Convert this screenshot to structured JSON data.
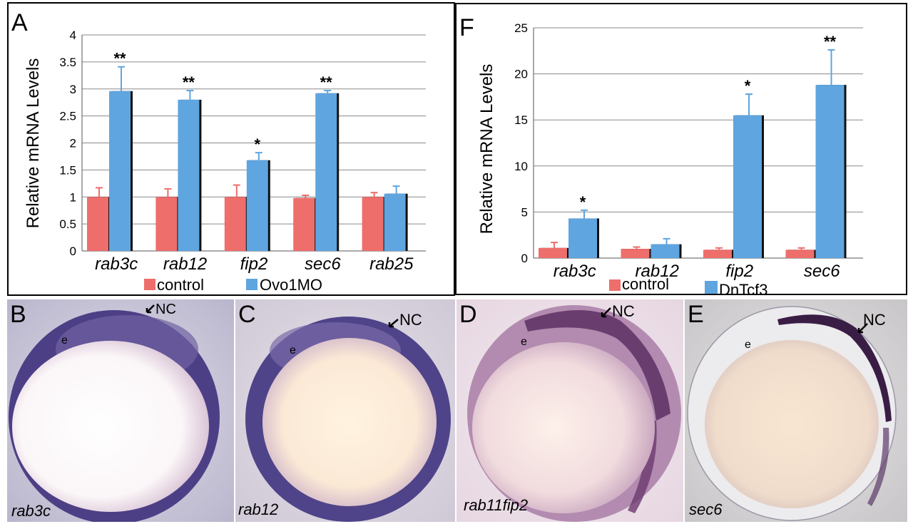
{
  "panel_letters": [
    "A",
    "F",
    "B",
    "C",
    "D",
    "E"
  ],
  "legend_colors": {
    "control": "#ee6e6b",
    "treatment": "#5fa5e0"
  },
  "chart_data": [
    {
      "panel": "A",
      "type": "bar",
      "ylabel": "Relative mRNA Levels",
      "ylim": [
        0,
        4
      ],
      "yticks": [
        "0",
        "0.5",
        "1",
        "1.5",
        "2",
        "2.5",
        "3",
        "3.5",
        "4"
      ],
      "categories": [
        "rab3c",
        "rab12",
        "fip2",
        "sec6",
        "rab25"
      ],
      "grid": true,
      "legend_position": "bottom",
      "series": [
        {
          "name": "control",
          "color": "#ee6e6b",
          "values": [
            1.0,
            1.0,
            1.0,
            0.98,
            1.0
          ],
          "errors": [
            0.17,
            0.15,
            0.22,
            0.05,
            0.08
          ]
        },
        {
          "name": "Ovo1MO",
          "color": "#5fa5e0",
          "values": [
            2.96,
            2.8,
            1.68,
            2.92,
            1.06
          ],
          "errors": [
            0.45,
            0.17,
            0.14,
            0.05,
            0.14
          ]
        }
      ],
      "annotations": [
        "**",
        "**",
        "*",
        "**",
        ""
      ]
    },
    {
      "panel": "F",
      "type": "bar",
      "ylabel": "Relative mRNA Levels",
      "ylim": [
        0,
        25
      ],
      "yticks": [
        "0",
        "5",
        "10",
        "15",
        "20",
        "25"
      ],
      "categories": [
        "rab3c",
        "rab12",
        "fip2",
        "sec6"
      ],
      "grid": true,
      "legend_position": "bottom",
      "series": [
        {
          "name": "control",
          "color": "#ee6e6b",
          "values": [
            1.1,
            1.0,
            0.9,
            0.9
          ],
          "errors": [
            0.6,
            0.2,
            0.2,
            0.2
          ]
        },
        {
          "name": "DnTcf3",
          "color": "#5fa5e0",
          "values": [
            4.3,
            1.5,
            15.5,
            18.8
          ],
          "errors": [
            0.9,
            0.6,
            2.3,
            3.8
          ]
        }
      ],
      "annotations": [
        "*",
        "",
        "*",
        "**"
      ]
    }
  ],
  "images": [
    {
      "panel": "B",
      "gene": "rab3c",
      "marker": "NC",
      "region": "e"
    },
    {
      "panel": "C",
      "gene": "rab12",
      "marker": "NC",
      "region": "e"
    },
    {
      "panel": "D",
      "gene": "rab11fip2",
      "marker": "NC",
      "region": "e"
    },
    {
      "panel": "E",
      "gene": "sec6",
      "marker": "NC",
      "region": "e"
    }
  ]
}
